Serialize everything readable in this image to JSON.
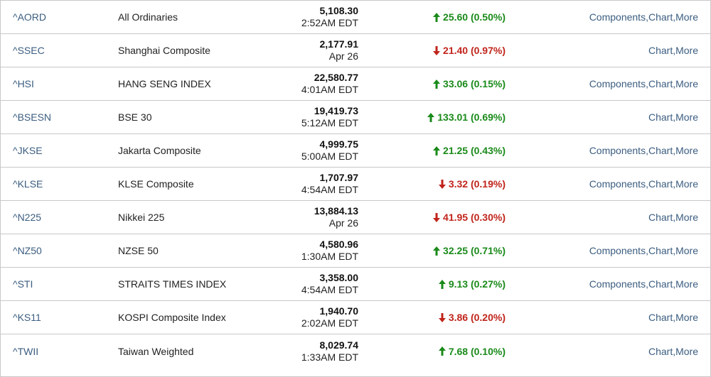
{
  "colors": {
    "link": "#3b5d80",
    "up": "#1a8a1a",
    "down": "#c0241b",
    "border": "#c8c8c8"
  },
  "labels": {
    "components": "Components",
    "chart": "Chart",
    "more": "More",
    "separator": ", "
  },
  "rows": [
    {
      "symbol": "^AORD",
      "name": "All Ordinaries",
      "last": "5,108.30",
      "time": "2:52AM EDT",
      "direction": "up",
      "change": "25.60 (0.50%)",
      "has_components": true
    },
    {
      "symbol": "^SSEC",
      "name": "Shanghai Composite",
      "last": "2,177.91",
      "time": "Apr 26",
      "direction": "down",
      "change": "21.40 (0.97%)",
      "has_components": false
    },
    {
      "symbol": "^HSI",
      "name": "HANG SENG INDEX",
      "last": "22,580.77",
      "time": "4:01AM EDT",
      "direction": "up",
      "change": "33.06 (0.15%)",
      "has_components": true
    },
    {
      "symbol": "^BSESN",
      "name": "BSE 30",
      "last": "19,419.73",
      "time": "5:12AM EDT",
      "direction": "up",
      "change": "133.01 (0.69%)",
      "has_components": false
    },
    {
      "symbol": "^JKSE",
      "name": "Jakarta Composite",
      "last": "4,999.75",
      "time": "5:00AM EDT",
      "direction": "up",
      "change": "21.25 (0.43%)",
      "has_components": true
    },
    {
      "symbol": "^KLSE",
      "name": "KLSE Composite",
      "last": "1,707.97",
      "time": "4:54AM EDT",
      "direction": "down",
      "change": "3.32 (0.19%)",
      "has_components": true
    },
    {
      "symbol": "^N225",
      "name": "Nikkei 225",
      "last": "13,884.13",
      "time": "Apr 26",
      "direction": "down",
      "change": "41.95 (0.30%)",
      "has_components": false
    },
    {
      "symbol": "^NZ50",
      "name": "NZSE 50",
      "last": "4,580.96",
      "time": "1:30AM EDT",
      "direction": "up",
      "change": "32.25 (0.71%)",
      "has_components": true
    },
    {
      "symbol": "^STI",
      "name": "STRAITS TIMES INDEX",
      "last": "3,358.00",
      "time": "4:54AM EDT",
      "direction": "up",
      "change": "9.13 (0.27%)",
      "has_components": true
    },
    {
      "symbol": "^KS11",
      "name": "KOSPI Composite Index",
      "last": "1,940.70",
      "time": "2:02AM EDT",
      "direction": "down",
      "change": "3.86 (0.20%)",
      "has_components": false
    },
    {
      "symbol": "^TWII",
      "name": "Taiwan Weighted",
      "last": "8,029.74",
      "time": "1:33AM EDT",
      "direction": "up",
      "change": "7.68 (0.10%)",
      "has_components": false
    }
  ]
}
